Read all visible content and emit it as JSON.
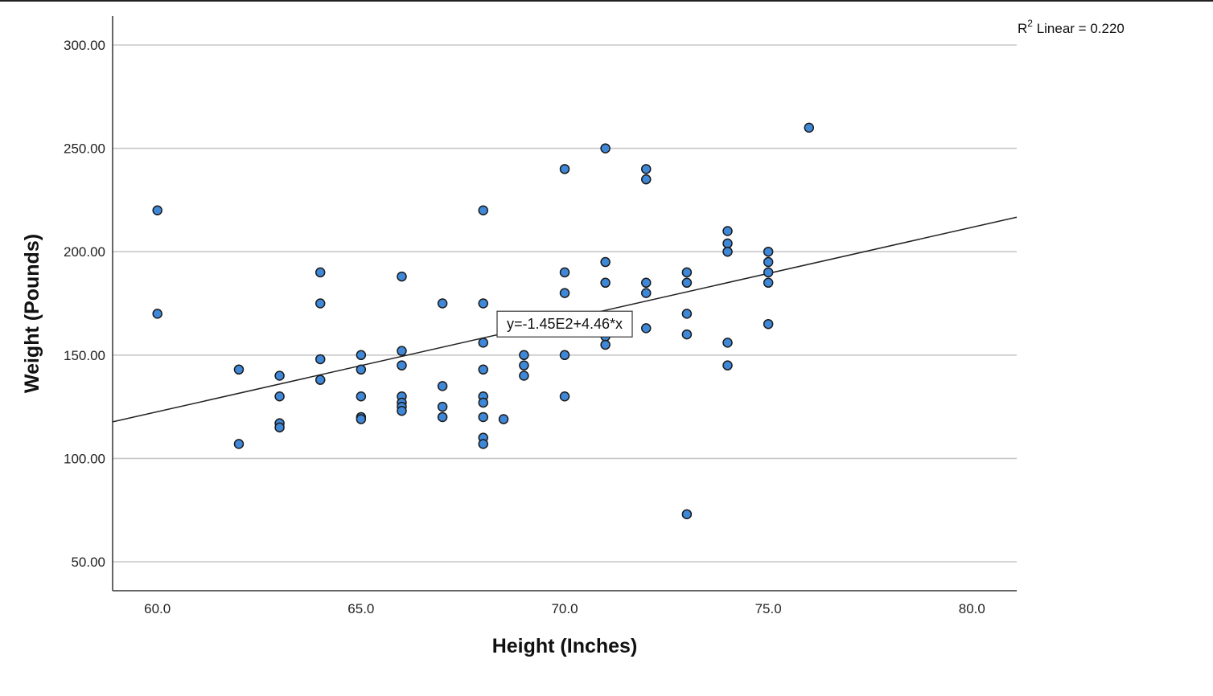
{
  "chart_data": {
    "type": "scatter",
    "xlabel": "Height (Inches)",
    "ylabel": "Weight (Pounds)",
    "xlim": [
      58.9,
      81.1
    ],
    "ylim": [
      36,
      314
    ],
    "grid": {
      "horizontal": true,
      "vertical": false
    },
    "x_ticks": [
      60,
      65,
      70,
      75,
      80
    ],
    "x_tick_labels": [
      "60.0",
      "65.0",
      "70.0",
      "75.0",
      "80.0"
    ],
    "y_ticks": [
      50,
      100,
      150,
      200,
      250,
      300
    ],
    "y_tick_labels": [
      "50.00",
      "100.00",
      "150.00",
      "200.00",
      "250.00",
      "300.00"
    ],
    "fit_line": {
      "intercept": -145,
      "slope": 4.46,
      "equation_label": "y=-1.45E2+4.46*x",
      "label_at": [
        70,
        165
      ]
    },
    "r2_label": {
      "prefix": "R",
      "sup": "2",
      "text": " Linear = 0.220"
    },
    "colors": {
      "point_fill": "#3f88d8",
      "point_stroke": "#1a1a1a",
      "grid": "#c8c8c8",
      "line": "#222222",
      "axis": "#333333"
    },
    "series": [
      {
        "points": [
          [
            60,
            220
          ],
          [
            60,
            170
          ],
          [
            62,
            143
          ],
          [
            62,
            107
          ],
          [
            63,
            140
          ],
          [
            63,
            130
          ],
          [
            63,
            117
          ],
          [
            63,
            115
          ],
          [
            64,
            190
          ],
          [
            64,
            175
          ],
          [
            64,
            148
          ],
          [
            64,
            138
          ],
          [
            65,
            150
          ],
          [
            65,
            143
          ],
          [
            65,
            130
          ],
          [
            65,
            120
          ],
          [
            65,
            119
          ],
          [
            66,
            188
          ],
          [
            66,
            152
          ],
          [
            66,
            145
          ],
          [
            66,
            130
          ],
          [
            66,
            127
          ],
          [
            66,
            125
          ],
          [
            66,
            123
          ],
          [
            67,
            175
          ],
          [
            67,
            135
          ],
          [
            67,
            125
          ],
          [
            67,
            120
          ],
          [
            68,
            220
          ],
          [
            68,
            175
          ],
          [
            68,
            156
          ],
          [
            68,
            143
          ],
          [
            68,
            130
          ],
          [
            68,
            127
          ],
          [
            68,
            120
          ],
          [
            68,
            110
          ],
          [
            68,
            107
          ],
          [
            68.5,
            119
          ],
          [
            69,
            150
          ],
          [
            69,
            145
          ],
          [
            69,
            140
          ],
          [
            70,
            240
          ],
          [
            70,
            190
          ],
          [
            70,
            180
          ],
          [
            70,
            150
          ],
          [
            70,
            130
          ],
          [
            71,
            250
          ],
          [
            71,
            195
          ],
          [
            71,
            185
          ],
          [
            71,
            159
          ],
          [
            71,
            155
          ],
          [
            72,
            240
          ],
          [
            72,
            235
          ],
          [
            72,
            185
          ],
          [
            72,
            180
          ],
          [
            72,
            163
          ],
          [
            73,
            190
          ],
          [
            73,
            185
          ],
          [
            73,
            170
          ],
          [
            73,
            160
          ],
          [
            73,
            73
          ],
          [
            74,
            210
          ],
          [
            74,
            204
          ],
          [
            74,
            200
          ],
          [
            74,
            156
          ],
          [
            74,
            145
          ],
          [
            75,
            200
          ],
          [
            75,
            195
          ],
          [
            75,
            190
          ],
          [
            75,
            185
          ],
          [
            75,
            165
          ],
          [
            76,
            260
          ]
        ]
      }
    ]
  }
}
